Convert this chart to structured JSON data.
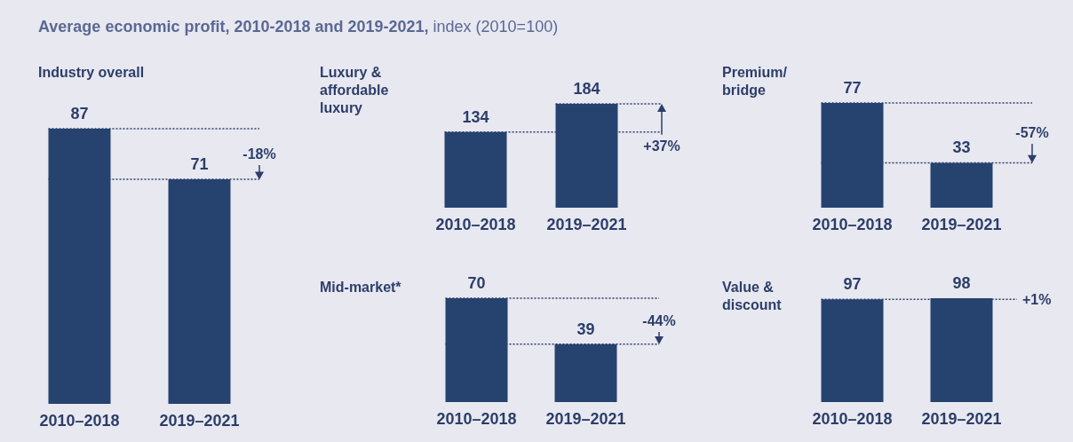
{
  "chart_data": [
    {
      "type": "other",
      "title": "Average economic profit, 2010-2018 and 2019-2021,",
      "subtitle": "index (2010=100)"
    },
    {
      "type": "bar",
      "title": "Industry overall",
      "categories": [
        "2010–2018",
        "2019–2021"
      ],
      "values": [
        87,
        71
      ],
      "color": "#26426f",
      "data_labels": true,
      "ref_lines": [
        {
          "axis": "y",
          "value": 87,
          "line_style": "dotted"
        },
        {
          "axis": "y",
          "value": 71,
          "line_style": "dotted"
        }
      ],
      "annotations": [
        "-18%"
      ]
    },
    {
      "type": "bar",
      "title": "Luxury & affordable luxury",
      "categories": [
        "2010–2018",
        "2019–2021"
      ],
      "values": [
        134,
        184
      ],
      "color": "#26426f",
      "data_labels": true,
      "ref_lines": [
        {
          "axis": "y",
          "value": 134,
          "line_style": "dotted"
        },
        {
          "axis": "y",
          "value": 184,
          "line_style": "dotted"
        }
      ],
      "annotations": [
        "+37%"
      ]
    },
    {
      "type": "bar",
      "title": "Premium/ bridge",
      "categories": [
        "2010–2018",
        "2019–2021"
      ],
      "values": [
        77,
        33
      ],
      "color": "#26426f",
      "data_labels": true,
      "ref_lines": [
        {
          "axis": "y",
          "value": 77,
          "line_style": "dotted"
        },
        {
          "axis": "y",
          "value": 33,
          "line_style": "dotted"
        }
      ],
      "annotations": [
        "-57%"
      ]
    },
    {
      "type": "bar",
      "title": "Mid-market*",
      "categories": [
        "2010–2018",
        "2019–2021"
      ],
      "values": [
        70,
        39
      ],
      "color": "#26426f",
      "data_labels": true,
      "ref_lines": [
        {
          "axis": "y",
          "value": 70,
          "line_style": "dotted"
        },
        {
          "axis": "y",
          "value": 39,
          "line_style": "dotted"
        }
      ],
      "annotations": [
        "-44%"
      ]
    },
    {
      "type": "bar",
      "title": "Value & discount",
      "categories": [
        "2010–2018",
        "2019–2021"
      ],
      "values": [
        97,
        98
      ],
      "color": "#26426f",
      "data_labels": true,
      "ref_lines": [
        {
          "axis": "y",
          "value": 97,
          "line_style": "dotted"
        }
      ],
      "annotations": [
        "+1%"
      ]
    }
  ]
}
